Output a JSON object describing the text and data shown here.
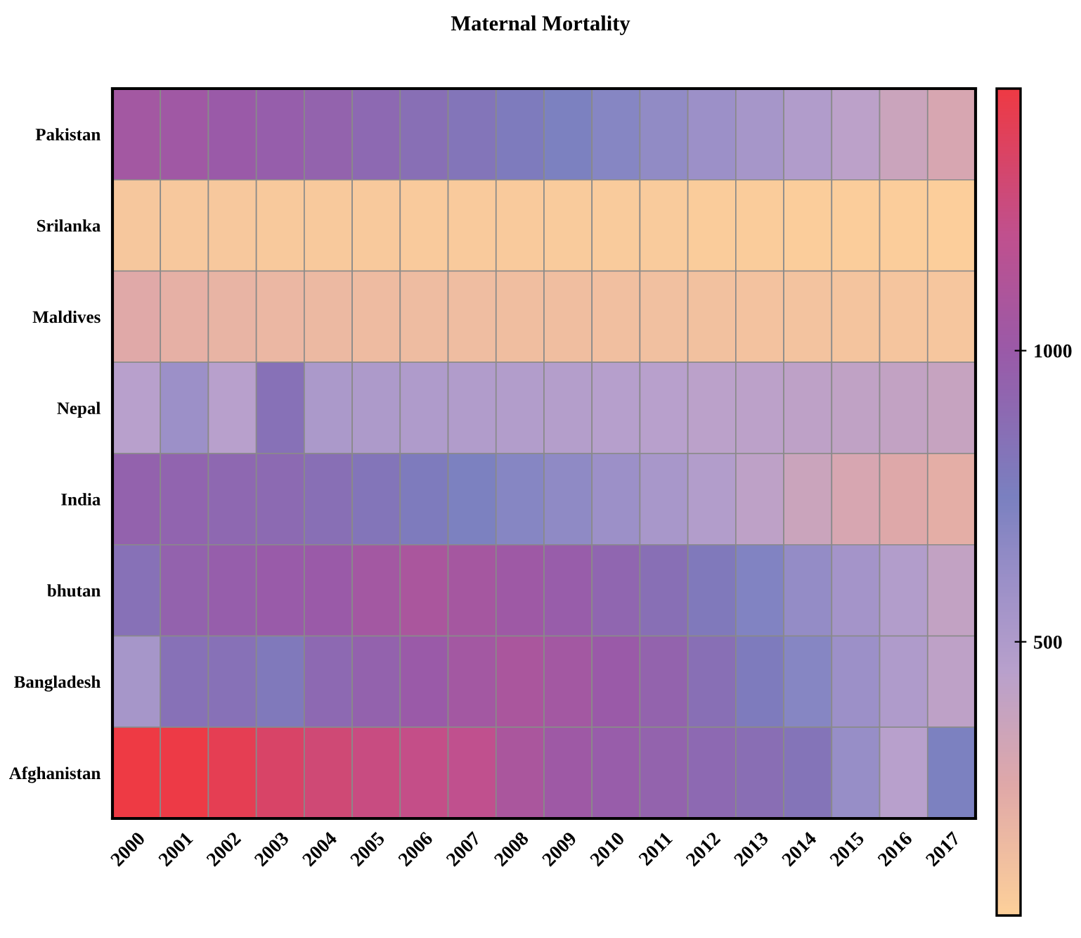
{
  "chart_data": {
    "type": "heatmap",
    "title": "Maternal Mortality",
    "categories": [
      "2000",
      "2001",
      "2002",
      "2003",
      "2004",
      "2005",
      "2006",
      "2007",
      "2008",
      "2009",
      "2010",
      "2011",
      "2012",
      "2013",
      "2014",
      "2015",
      "2016",
      "2017"
    ],
    "y_categories": [
      "Pakistan",
      "Srilanka",
      "Maldives",
      "Nepal",
      "India",
      "bhutan",
      "Bangladesh",
      "Afghanistan"
    ],
    "cells": [
      [
        1050,
        1030,
        1000,
        970,
        940,
        900,
        860,
        820,
        780,
        740,
        700,
        650,
        600,
        550,
        490,
        430,
        360,
        300
      ],
      [
        80,
        78,
        76,
        74,
        72,
        70,
        68,
        66,
        64,
        62,
        60,
        58,
        56,
        54,
        52,
        50,
        48,
        45
      ],
      [
        250,
        210,
        190,
        170,
        160,
        150,
        145,
        140,
        135,
        130,
        125,
        120,
        115,
        110,
        105,
        100,
        95,
        90
      ],
      [
        450,
        600,
        450,
        850,
        520,
        510,
        500,
        490,
        480,
        470,
        460,
        450,
        440,
        430,
        420,
        410,
        400,
        380
      ],
      [
        950,
        930,
        910,
        890,
        860,
        820,
        780,
        740,
        700,
        660,
        600,
        540,
        480,
        420,
        360,
        300,
        260,
        220
      ],
      [
        850,
        950,
        970,
        990,
        1000,
        1050,
        1080,
        1060,
        1020,
        980,
        920,
        860,
        800,
        720,
        640,
        560,
        480,
        400
      ],
      [
        550,
        850,
        850,
        800,
        900,
        950,
        1000,
        1050,
        1080,
        1050,
        1000,
        940,
        860,
        780,
        700,
        600,
        500,
        420
      ],
      [
        1450,
        1440,
        1400,
        1330,
        1280,
        1240,
        1220,
        1200,
        1080,
        1020,
        980,
        940,
        900,
        870,
        830,
        620,
        450,
        740
      ]
    ],
    "clim": [
      30,
      1450
    ],
    "cticks": [
      500,
      1000
    ]
  }
}
